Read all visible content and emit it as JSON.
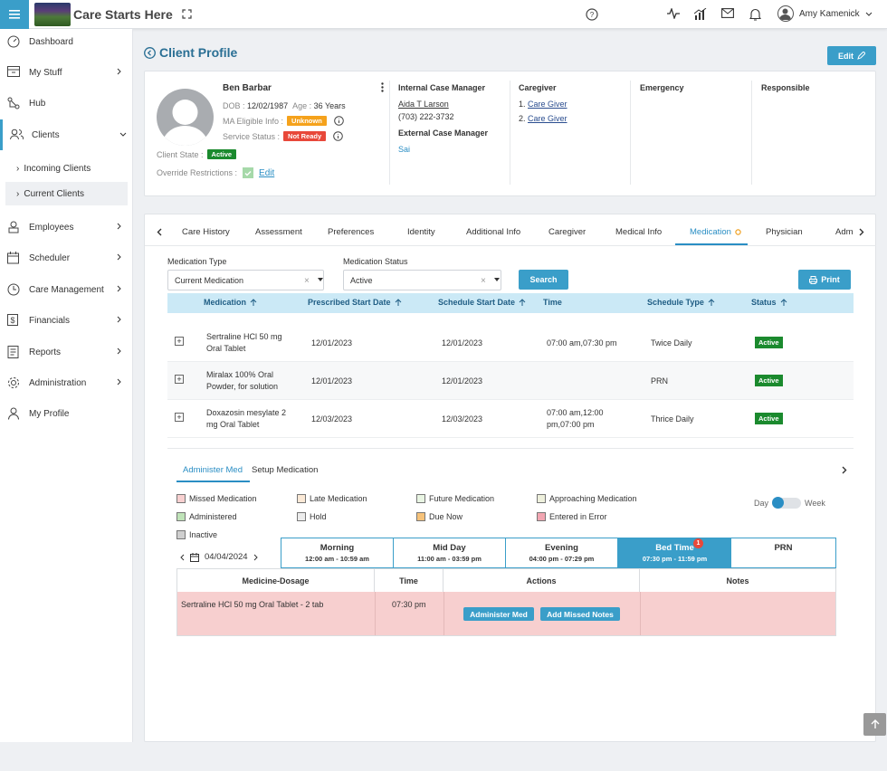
{
  "app": {
    "title": "Care Starts Here"
  },
  "user": {
    "name": "Amy Kamenick"
  },
  "sidebar": {
    "items": [
      {
        "label": "Dashboard",
        "icon": "dashboard-icon"
      },
      {
        "label": "My Stuff",
        "icon": "inbox-icon"
      },
      {
        "label": "Hub",
        "icon": "hub-icon"
      },
      {
        "label": "Clients",
        "icon": "users-icon"
      },
      {
        "label": "Employees",
        "icon": "employee-icon"
      },
      {
        "label": "Scheduler",
        "icon": "calendar-icon"
      },
      {
        "label": "Care Management",
        "icon": "clock-icon"
      },
      {
        "label": "Financials",
        "icon": "finance-icon"
      },
      {
        "label": "Reports",
        "icon": "report-icon"
      },
      {
        "label": "Administration",
        "icon": "gear-icon"
      },
      {
        "label": "My Profile",
        "icon": "person-icon"
      }
    ],
    "sub": [
      {
        "label": "Incoming Clients"
      },
      {
        "label": "Current Clients"
      }
    ]
  },
  "page": {
    "title": "Client Profile",
    "edit_label": "Edit"
  },
  "client": {
    "name": "Ben Barbar",
    "dob_label": "DOB :",
    "dob": "12/02/1987",
    "age_label": "Age :",
    "age": "36 Years",
    "ma_label": "MA Eligible Info :",
    "ma_value": "Unknown",
    "service_label": "Service Status :",
    "service_value": "Not Ready",
    "state_label": "Client State :",
    "state_value": "Active",
    "override_label": "Override Restrictions :",
    "override_edit": "Edit"
  },
  "contacts": {
    "icm_title": "Internal Case Manager",
    "icm_name": "Aida T Larson",
    "icm_phone": "(703) 222-3732",
    "ecm_title": "External Case Manager",
    "ecm_name": "Sai",
    "caregiver_title": "Caregiver",
    "caregivers": [
      {
        "num": "1.",
        "name": "Care Giver"
      },
      {
        "num": "2.",
        "name": "Care Giver"
      }
    ],
    "emergency_title": "Emergency",
    "responsible_title": "Responsible"
  },
  "tabs": [
    "Care History",
    "Assessment",
    "Preferences",
    "Identity",
    "Additional Info",
    "Caregiver",
    "Medical Info",
    "Medication",
    "Physician",
    "Adm"
  ],
  "filters": {
    "type_label": "Medication Type",
    "type_value": "Current Medication",
    "status_label": "Medication Status",
    "status_value": "Active",
    "search_label": "Search",
    "print_label": "Print"
  },
  "med_table": {
    "headers": [
      "Medication",
      "Prescribed Start Date",
      "Schedule Start Date",
      "Time",
      "Schedule Type",
      "Status"
    ],
    "rows": [
      {
        "med1": "Sertraline HCl 50 mg",
        "med2": "Oral Tablet",
        "prescribed": "12/01/2023",
        "sched": "12/01/2023",
        "time1": "07:00 am,07:30 pm",
        "time2": "",
        "type": "Twice Daily",
        "status": "Active"
      },
      {
        "med1": "Miralax 100% Oral",
        "med2": "Powder, for solution",
        "prescribed": "12/01/2023",
        "sched": "12/01/2023",
        "time1": "",
        "time2": "",
        "type": "PRN",
        "status": "Active"
      },
      {
        "med1": "Doxazosin mesylate 2",
        "med2": "mg Oral Tablet",
        "prescribed": "12/03/2023",
        "sched": "12/03/2023",
        "time1": "07:00 am,12:00",
        "time2": "pm,07:00 pm",
        "type": "Thrice Daily",
        "status": "Active"
      }
    ]
  },
  "subtabs": {
    "administer": "Administer Med",
    "setup": "Setup Medication"
  },
  "legend": [
    {
      "label": "Missed Medication",
      "color": "#f8d0d0"
    },
    {
      "label": "Late Medication",
      "color": "#fbe9d6"
    },
    {
      "label": "Future Medication",
      "color": "#e9f5e3"
    },
    {
      "label": "Approaching Medication",
      "color": "#eef0dc"
    },
    {
      "label": "Administered",
      "color": "#bfe3b8"
    },
    {
      "label": "Hold",
      "color": "#ececec"
    },
    {
      "label": "Due Now",
      "color": "#f6c27a"
    },
    {
      "label": "Entered in Error",
      "color": "#f2a6b2"
    },
    {
      "label": "Inactive",
      "color": "#cfcfcf"
    }
  ],
  "view_toggle": {
    "day": "Day",
    "week": "Week"
  },
  "date_nav": {
    "date": "04/04/2024"
  },
  "shifts": [
    {
      "name": "Morning",
      "range": "12:00 am - 10:59 am"
    },
    {
      "name": "Mid Day",
      "range": "11:00 am - 03:59 pm"
    },
    {
      "name": "Evening",
      "range": "04:00 pm - 07:29 pm"
    },
    {
      "name": "Bed Time",
      "range": "07:30 pm - 11:59 pm",
      "count": "1"
    },
    {
      "name": "PRN",
      "range": ""
    }
  ],
  "admin_table": {
    "headers": [
      "Medicine-Dosage",
      "Time",
      "Actions",
      "Notes"
    ],
    "row": {
      "med": "Sertraline HCl 50 mg Oral Tablet - 2 tab",
      "time": "07:30 pm",
      "administer": "Administer Med",
      "missed": "Add Missed Notes",
      "notes": ""
    }
  }
}
